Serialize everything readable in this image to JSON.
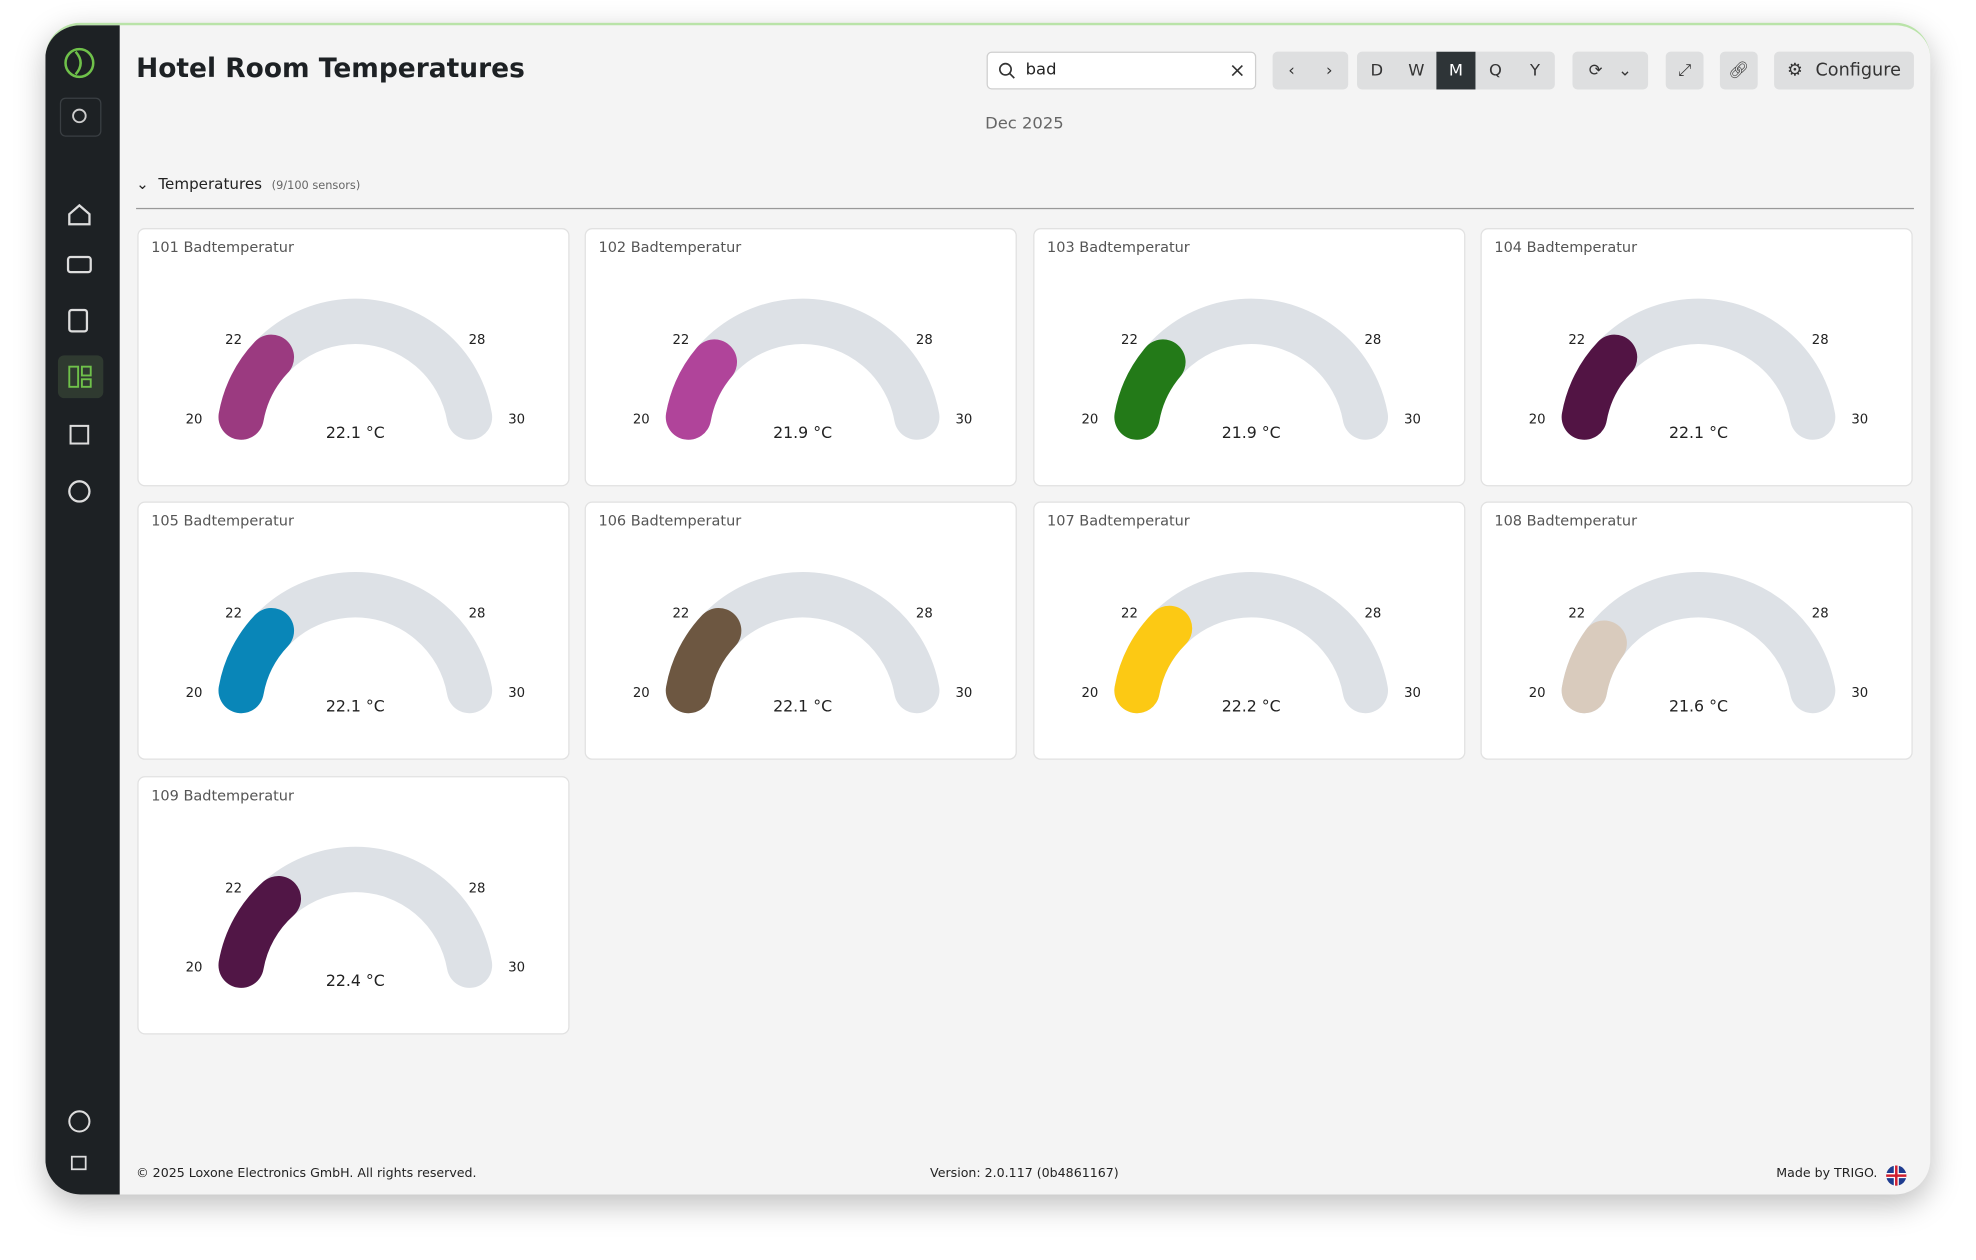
{
  "header": {
    "title": "Hotel Room Temperatures",
    "search": "bad",
    "period": {
      "options": [
        "D",
        "W",
        "M",
        "Q",
        "Y"
      ],
      "active": "M"
    },
    "configure": "Configure",
    "period_label": "Dec 2025"
  },
  "section": {
    "title": "Temperatures",
    "note": "(9/100 sensors)"
  },
  "chart_data": [
    {
      "type": "gauge",
      "title": "101 Badtemperatur",
      "values": [
        22.1
      ],
      "value_labels": [
        "22.1 °C"
      ],
      "color": "#9b3a80",
      "lim": [
        20,
        30
      ],
      "ticks": [
        20,
        22,
        28,
        30
      ]
    },
    {
      "type": "gauge",
      "title": "102 Badtemperatur",
      "values": [
        21.9
      ],
      "value_labels": [
        "21.9 °C"
      ],
      "color": "#b0449a",
      "lim": [
        20,
        30
      ],
      "ticks": [
        20,
        22,
        28,
        30
      ]
    },
    {
      "type": "gauge",
      "title": "103 Badtemperatur",
      "values": [
        21.9
      ],
      "value_labels": [
        "21.9 °C"
      ],
      "color": "#237a18",
      "lim": [
        20,
        30
      ],
      "ticks": [
        20,
        22,
        28,
        30
      ]
    },
    {
      "type": "gauge",
      "title": "104 Badtemperatur",
      "values": [
        22.1
      ],
      "value_labels": [
        "22.1 °C"
      ],
      "color": "#521444",
      "lim": [
        20,
        30
      ],
      "ticks": [
        20,
        22,
        28,
        30
      ]
    },
    {
      "type": "gauge",
      "title": "105 Badtemperatur",
      "values": [
        22.1
      ],
      "value_labels": [
        "22.1 °C"
      ],
      "color": "#0986b8",
      "lim": [
        20,
        30
      ],
      "ticks": [
        20,
        22,
        28,
        30
      ]
    },
    {
      "type": "gauge",
      "title": "106 Badtemperatur",
      "values": [
        22.1
      ],
      "value_labels": [
        "22.1 °C"
      ],
      "color": "#6d5741",
      "lim": [
        20,
        30
      ],
      "ticks": [
        20,
        22,
        28,
        30
      ]
    },
    {
      "type": "gauge",
      "title": "107 Badtemperatur",
      "values": [
        22.2
      ],
      "value_labels": [
        "22.2 °C"
      ],
      "color": "#fcc914",
      "lim": [
        20,
        30
      ],
      "ticks": [
        20,
        22,
        28,
        30
      ]
    },
    {
      "type": "gauge",
      "title": "108 Badtemperatur",
      "values": [
        21.6
      ],
      "value_labels": [
        "21.6 °C"
      ],
      "color": "#d9cbbd",
      "lim": [
        20,
        30
      ],
      "ticks": [
        20,
        22,
        28,
        30
      ]
    },
    {
      "type": "gauge",
      "title": "109 Badtemperatur",
      "values": [
        22.4
      ],
      "value_labels": [
        "22.4 °C"
      ],
      "color": "#511646",
      "lim": [
        20,
        30
      ],
      "ticks": [
        20,
        22,
        28,
        30
      ]
    }
  ],
  "footer": {
    "copyright": "© 2025 Loxone Electronics GmbH. All rights reserved.",
    "version": "Version: 2.0.117 (0b4861167)",
    "made_by": "Made by TRIGO."
  }
}
